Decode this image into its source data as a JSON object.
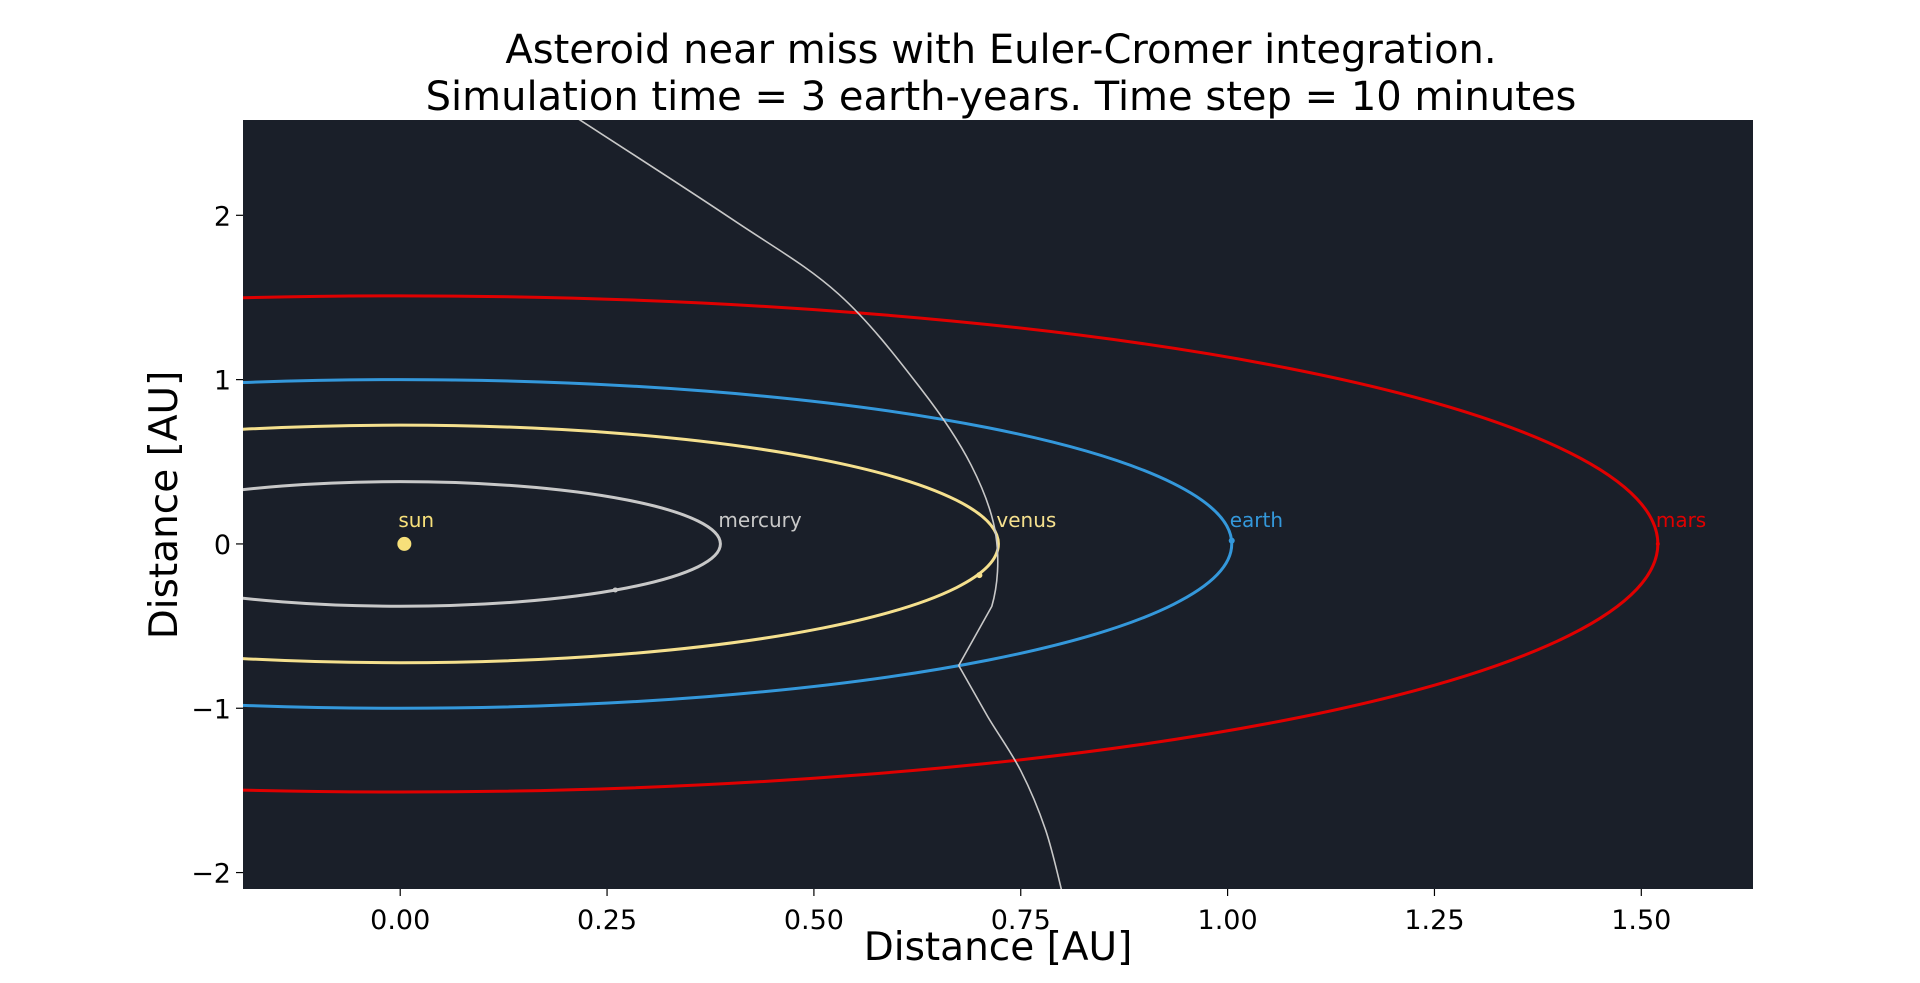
{
  "chart_data": {
    "type": "line",
    "title": [
      "Asteroid near miss with Euler-Cromer integration.",
      "Simulation time = 3 earth-years. Time step = 10 minutes"
    ],
    "xlabel": "Distance [AU]",
    "ylabel": "Distance [AU]",
    "xlim": [
      -0.19,
      1.635
    ],
    "ylim": [
      -2.1,
      2.58
    ],
    "x_ticks": [
      0.0,
      0.25,
      0.5,
      0.75,
      1.0,
      1.25,
      1.5
    ],
    "x_tick_labels": [
      "0.00",
      "0.25",
      "0.50",
      "0.75",
      "1.00",
      "1.25",
      "1.50"
    ],
    "y_ticks": [
      2,
      1,
      0,
      -1,
      -2
    ],
    "y_tick_labels": [
      "2",
      "1",
      "0",
      "−1",
      "−2"
    ],
    "grid": false,
    "plot_background": "#1a1f29",
    "series": [
      {
        "name": "mercury",
        "color": "#c8c8c8",
        "center": [
          0.0,
          0.0
        ],
        "a": 0.387,
        "b": 0.379,
        "position": [
          0.26,
          -0.28
        ],
        "marker_size": 2.5
      },
      {
        "name": "venus",
        "color": "#f5e08e",
        "center": [
          0.0,
          0.0
        ],
        "a": 0.723,
        "b": 0.723,
        "position": [
          0.7,
          -0.19
        ],
        "marker_size": 3
      },
      {
        "name": "earth",
        "color": "#3498db",
        "center": [
          0.0,
          0.0
        ],
        "a": 1.005,
        "b": 1.0,
        "position": [
          1.005,
          0.02
        ],
        "marker_size": 3
      },
      {
        "name": "mars",
        "color": "#e00000",
        "center": [
          0.0,
          0.0
        ],
        "a": 1.52,
        "b": 1.51,
        "position": [
          1.52,
          0.0
        ],
        "marker_size": 2
      }
    ],
    "sun": {
      "name": "sun",
      "color": "#f7e07a",
      "position": [
        0.005,
        0.0
      ],
      "marker_size": 7
    },
    "asteroid": {
      "color": "#c8c8c8",
      "points": [
        [
          0.205,
          2.62
        ],
        [
          0.4,
          1.98
        ],
        [
          0.53,
          1.52
        ],
        [
          0.63,
          0.94
        ],
        [
          0.69,
          0.48
        ],
        [
          0.72,
          0.05
        ],
        [
          0.715,
          -0.38
        ],
        [
          0.675,
          -0.74
        ],
        [
          0.71,
          -1.05
        ],
        [
          0.75,
          -1.38
        ],
        [
          0.78,
          -1.74
        ],
        [
          0.8,
          -2.12
        ]
      ]
    }
  }
}
